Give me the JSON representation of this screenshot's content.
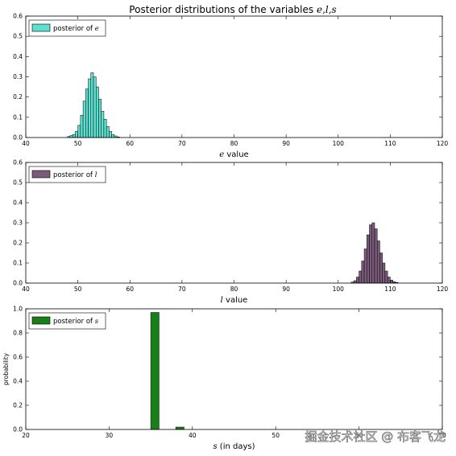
{
  "title": "Posterior distributions of the variables e,l,s",
  "title_prefix": "Posterior distributions of the variables ",
  "title_vars": "e,l,s",
  "watermark": "掘金技术社区 @ 布客飞龙",
  "colors": {
    "e": "#5de0d0",
    "l": "#7a5b7a",
    "s": "#198019",
    "axis": "#000000",
    "background": "#ffffff"
  },
  "chart_data": [
    {
      "type": "bar",
      "id": "e",
      "xlabel_var": "e",
      "xlabel_rest": " value",
      "legend_prefix": "posterior of ",
      "legend_var": "e",
      "legend_position": "top-left",
      "xlim": [
        40,
        120
      ],
      "ylim": [
        0,
        0.6
      ],
      "xticks": [
        "40",
        "50",
        "60",
        "70",
        "80",
        "90",
        "100",
        "110",
        "120"
      ],
      "yticks": [
        "0.0",
        "0.1",
        "0.2",
        "0.3",
        "0.4",
        "0.5",
        "0.6"
      ],
      "bin_width": 0.5,
      "bins_start": [
        48.0,
        48.5,
        49.0,
        49.5,
        50.0,
        50.5,
        51.0,
        51.5,
        52.0,
        52.5,
        53.0,
        53.5,
        54.0,
        54.5,
        55.0,
        55.5,
        56.0,
        56.5,
        57.0,
        57.5
      ],
      "values": [
        0.005,
        0.01,
        0.015,
        0.03,
        0.06,
        0.11,
        0.18,
        0.24,
        0.29,
        0.32,
        0.3,
        0.25,
        0.19,
        0.13,
        0.09,
        0.055,
        0.03,
        0.015,
        0.008,
        0.003
      ]
    },
    {
      "type": "bar",
      "id": "l",
      "xlabel_var": "l",
      "xlabel_rest": " value",
      "legend_prefix": "posterior of ",
      "legend_var": "l",
      "legend_position": "top-left",
      "xlim": [
        40,
        120
      ],
      "ylim": [
        0,
        0.6
      ],
      "xticks": [
        "40",
        "50",
        "60",
        "70",
        "80",
        "90",
        "100",
        "110",
        "120"
      ],
      "yticks": [
        "0.0",
        "0.1",
        "0.2",
        "0.3",
        "0.4",
        "0.5",
        "0.6"
      ],
      "bin_width": 0.5,
      "bins_start": [
        102.5,
        103.0,
        103.5,
        104.0,
        104.5,
        105.0,
        105.5,
        106.0,
        106.5,
        107.0,
        107.5,
        108.0,
        108.5,
        109.0,
        109.5,
        110.0,
        110.5,
        111.0
      ],
      "values": [
        0.005,
        0.012,
        0.03,
        0.06,
        0.11,
        0.17,
        0.24,
        0.29,
        0.3,
        0.27,
        0.21,
        0.15,
        0.1,
        0.06,
        0.03,
        0.015,
        0.007,
        0.003
      ]
    },
    {
      "type": "bar",
      "id": "s",
      "xlabel_var": "s",
      "xlabel_rest": " (in days)",
      "ylabel": "probability",
      "legend_prefix": "posterior of ",
      "legend_var": "s",
      "legend_position": "top-left",
      "xlim": [
        20,
        70
      ],
      "ylim": [
        0,
        1.0
      ],
      "xticks": [
        "20",
        "30",
        "40",
        "50",
        "60",
        "70"
      ],
      "yticks": [
        "0.0",
        "0.2",
        "0.4",
        "0.6",
        "0.8",
        "1.0"
      ],
      "bin_width": 1,
      "bins_start": [
        35,
        38
      ],
      "values": [
        0.97,
        0.02
      ]
    }
  ]
}
